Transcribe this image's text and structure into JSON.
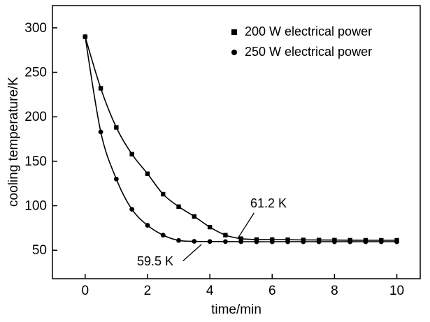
{
  "figure": {
    "background": "#ffffff",
    "axis_color": "#000000",
    "line_color": "#000000"
  },
  "chart_data": {
    "type": "line",
    "title": "",
    "xlabel": "time/min",
    "ylabel": "cooling temperature/K",
    "xlim": [
      -1.05,
      10.75
    ],
    "ylim": [
      18,
      325
    ],
    "x_ticks": [
      0,
      2,
      4,
      6,
      8,
      10
    ],
    "y_ticks": [
      50,
      100,
      150,
      200,
      250,
      300
    ],
    "grid": false,
    "legend_position": "upper-right-inside",
    "series": [
      {
        "name": "200 W electrical power",
        "marker": "square",
        "color": "#000000",
        "x": [
          0,
          0.5,
          1,
          1.5,
          2,
          2.5,
          3,
          3.5,
          4,
          4.5,
          5,
          5.5,
          6,
          6.5,
          7,
          7.5,
          8,
          8.5,
          9,
          9.5,
          10
        ],
        "y": [
          290,
          232,
          188,
          158,
          136,
          113,
          99,
          88,
          76,
          67,
          63,
          62,
          62,
          61.8,
          61.6,
          61.5,
          61.4,
          61.3,
          61.2,
          61.2,
          61.2
        ]
      },
      {
        "name": "250 W electrical power",
        "marker": "circle",
        "color": "#000000",
        "x": [
          0,
          0.5,
          1,
          1.5,
          2,
          2.5,
          3,
          3.5,
          4,
          4.5,
          5,
          5.5,
          6,
          6.5,
          7,
          7.5,
          8,
          8.5,
          9,
          9.5,
          10
        ],
        "y": [
          290,
          183,
          130,
          96,
          78,
          67,
          61,
          60,
          59.8,
          59.7,
          59.6,
          59.5,
          59.5,
          59.5,
          59.5,
          59.5,
          59.5,
          59.5,
          59.5,
          59.5,
          59.5
        ]
      }
    ],
    "annotations": [
      {
        "text": "61.2 K",
        "asymptote_of": "200 W electrical power",
        "line": {
          "x1": 5.42,
          "y1": 92,
          "x2": 4.9,
          "y2": 63.5
        }
      },
      {
        "text": "59.5 K",
        "asymptote_of": "250 W electrical power",
        "line": {
          "x1": 3.14,
          "y1": 38,
          "x2": 3.73,
          "y2": 56.5
        }
      }
    ]
  }
}
